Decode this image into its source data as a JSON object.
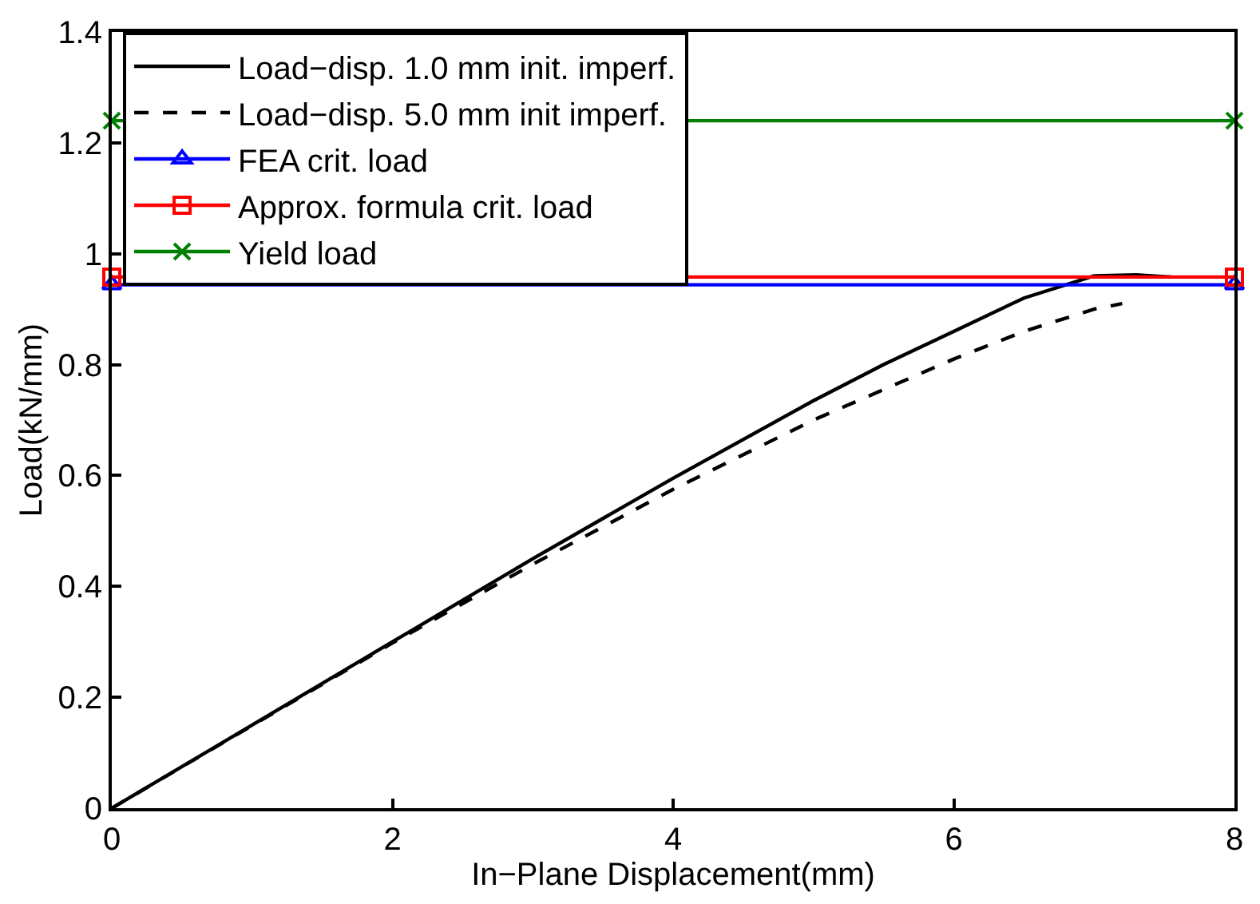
{
  "chart_data": {
    "type": "line",
    "xlabel": "In−Plane Displacement(mm)",
    "ylabel": "Load(kN/mm)",
    "xlim": [
      0,
      8
    ],
    "xticks": [
      0,
      2,
      4,
      6,
      8
    ],
    "ylim": [
      0,
      1.4
    ],
    "yticks": [
      0,
      0.2,
      0.4,
      0.6,
      0.8,
      1,
      1.2,
      1.4
    ],
    "legend": "top left",
    "series": [
      {
        "name": "Load−disp. 1.0 mm init. imperf.",
        "color": "#000000",
        "line_style": "solid",
        "marker": "none",
        "x": [
          0,
          1,
          2,
          3,
          4,
          5,
          5.5,
          6,
          6.5,
          7,
          7.3,
          7.55
        ],
        "values": [
          0,
          0.15,
          0.3,
          0.45,
          0.595,
          0.735,
          0.8,
          0.86,
          0.92,
          0.96,
          0.962,
          0.958
        ]
      },
      {
        "name": "Load−disp. 5.0 mm init imperf.",
        "color": "#000000",
        "line_style": "dashed",
        "marker": "none",
        "x": [
          0,
          2,
          3,
          4,
          5,
          5.5,
          6,
          6.5,
          7,
          7.2
        ],
        "values": [
          0,
          0.298,
          0.44,
          0.575,
          0.7,
          0.755,
          0.81,
          0.86,
          0.9,
          0.91
        ]
      },
      {
        "name": "FEA crit. load",
        "color": "#0000ff",
        "line_style": "solid",
        "marker": "triangle",
        "x": [
          0,
          8
        ],
        "values": [
          0.944,
          0.944
        ]
      },
      {
        "name": "Approx. formula crit. load",
        "color": "#ff0000",
        "line_style": "solid",
        "marker": "square",
        "x": [
          0,
          8
        ],
        "values": [
          0.958,
          0.958
        ]
      },
      {
        "name": "Yield load",
        "color": "#008000",
        "line_style": "solid",
        "marker": "cross",
        "x": [
          0,
          8
        ],
        "values": [
          1.24,
          1.24
        ]
      }
    ]
  }
}
